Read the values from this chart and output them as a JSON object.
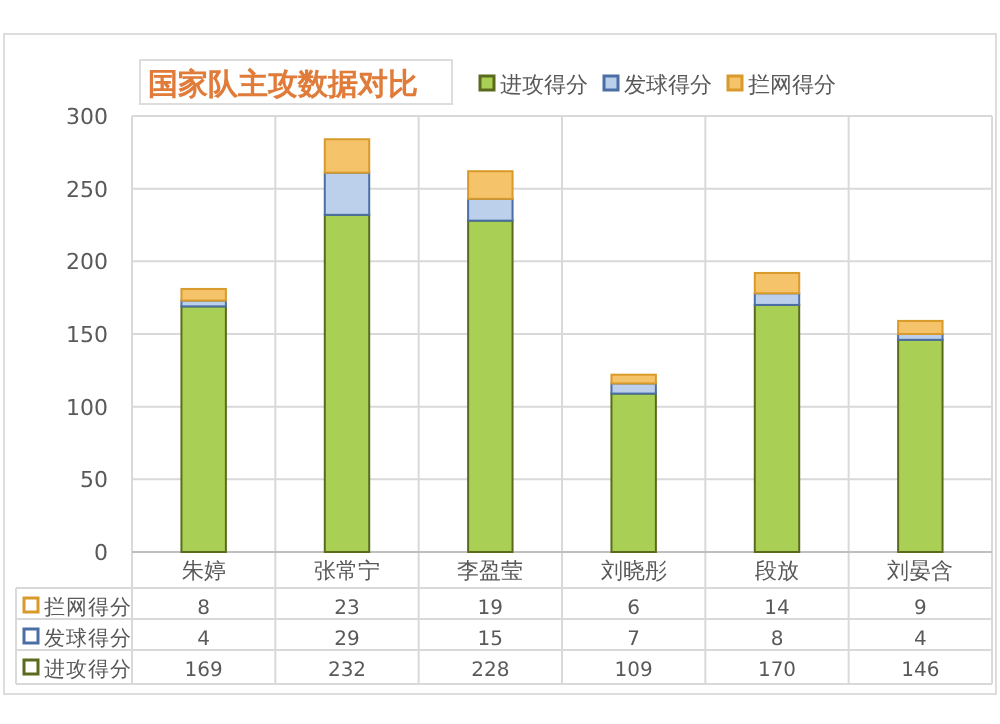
{
  "chart_data": {
    "type": "bar",
    "title": "国家队主攻数据对比",
    "categories": [
      "朱婷",
      "张常宁",
      "李盈莹",
      "刘晓彤",
      "段放",
      "刘晏含"
    ],
    "series": [
      {
        "name": "进攻得分",
        "color": "#a9cf55",
        "values": [
          169,
          232,
          228,
          109,
          170,
          146
        ]
      },
      {
        "name": "发球得分",
        "color": "#bcd0ec",
        "values": [
          4,
          29,
          15,
          7,
          8,
          4
        ]
      },
      {
        "name": "拦网得分",
        "color": "#f5c36a",
        "values": [
          8,
          23,
          19,
          6,
          14,
          9
        ]
      }
    ],
    "stacked": true,
    "ylim": [
      0,
      300
    ],
    "yticks": [
      0,
      50,
      100,
      150,
      200,
      250,
      300
    ],
    "grid": "y",
    "legend": "top",
    "data_labels": true
  }
}
